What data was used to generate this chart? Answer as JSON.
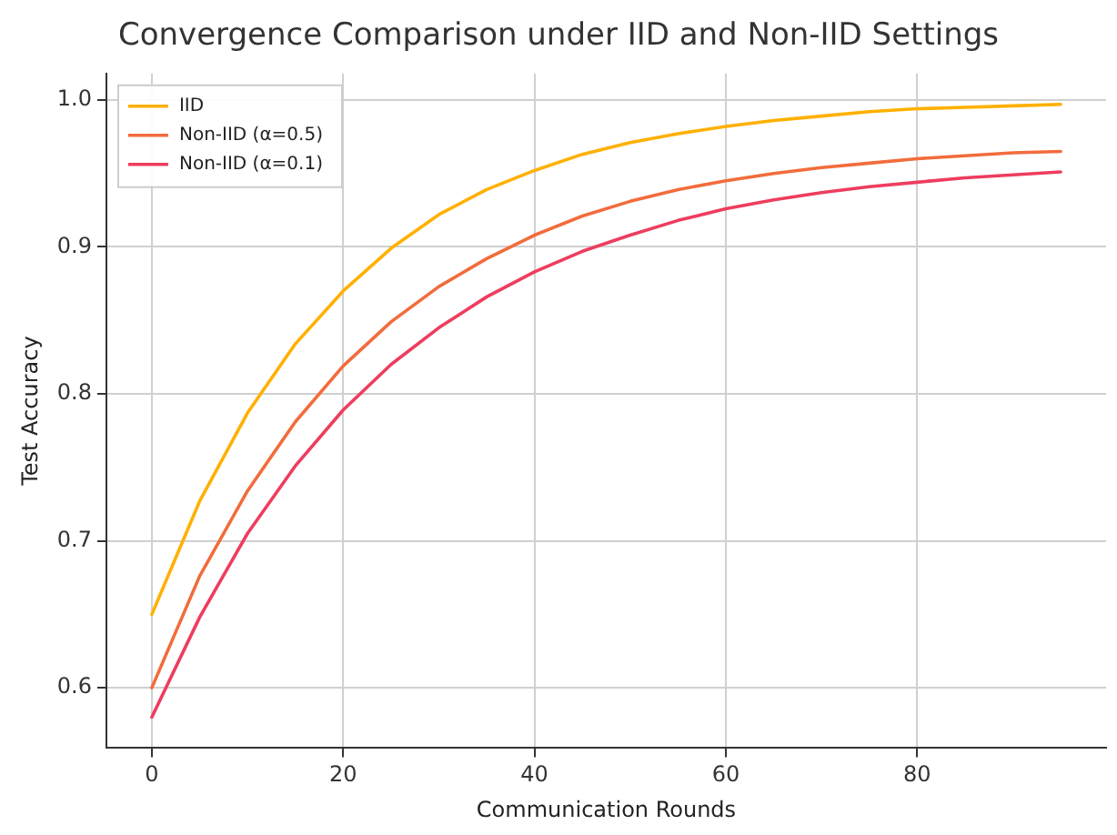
{
  "chart_data": {
    "type": "line",
    "title": "Convergence Comparison under IID and Non-IID Settings",
    "xlabel": "Communication Rounds",
    "ylabel": "Test Accuracy",
    "x": [
      0,
      5,
      10,
      15,
      20,
      25,
      30,
      35,
      40,
      45,
      50,
      55,
      60,
      65,
      70,
      75,
      80,
      85,
      90,
      95
    ],
    "series": [
      {
        "name": "IID",
        "color": "#ffb000",
        "values": [
          0.65,
          0.727,
          0.787,
          0.834,
          0.87,
          0.899,
          0.922,
          0.939,
          0.952,
          0.963,
          0.971,
          0.977,
          0.982,
          0.986,
          0.989,
          0.992,
          0.994,
          0.995,
          0.996,
          0.997
        ]
      },
      {
        "name": "Non-IID (α=0.5)",
        "color": "#f26c3c",
        "values": [
          0.6,
          0.676,
          0.734,
          0.781,
          0.819,
          0.849,
          0.873,
          0.892,
          0.908,
          0.921,
          0.931,
          0.939,
          0.945,
          0.95,
          0.954,
          0.957,
          0.96,
          0.962,
          0.964,
          0.965
        ]
      },
      {
        "name": "Non-IID (α=0.1)",
        "color": "#ee3d5e",
        "values": [
          0.58,
          0.648,
          0.705,
          0.751,
          0.789,
          0.82,
          0.845,
          0.866,
          0.883,
          0.897,
          0.908,
          0.918,
          0.926,
          0.932,
          0.937,
          0.941,
          0.944,
          0.947,
          0.949,
          0.951
        ]
      }
    ],
    "xlim": [
      -4.75,
      99.75
    ],
    "xticks": [
      0,
      20,
      40,
      60,
      80
    ],
    "ylim": [
      0.559,
      1.018
    ],
    "yticks": [
      0.6,
      0.7,
      0.8,
      0.9,
      {
        "value": 1,
        "label": "1.0"
      }
    ],
    "grid": true,
    "legend": "top left",
    "marker": "none",
    "line_style": "solid"
  }
}
